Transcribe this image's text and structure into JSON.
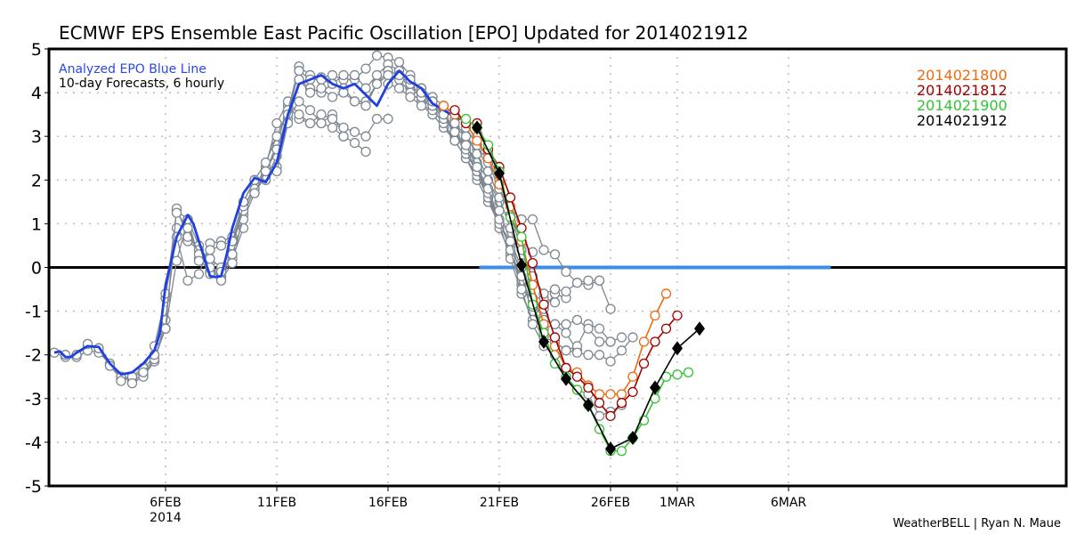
{
  "chart_data": {
    "type": "line",
    "title": "ECMWF EPS Ensemble East Pacific Oscillation [EPO] Updated for 2014021912",
    "xlabel": "",
    "ylabel": "",
    "ylim": [
      -5,
      5
    ],
    "xlim_days": [
      0,
      37.5
    ],
    "x_origin_date": "2014-02-01",
    "yticks": [
      "5",
      "4",
      "3",
      "2",
      "1",
      "0",
      "-1",
      "-2",
      "-3",
      "-4",
      "-5"
    ],
    "ytick_values": [
      5,
      4,
      3,
      2,
      1,
      0,
      -1,
      -2,
      -3,
      -4,
      -5
    ],
    "xticks": [
      {
        "day": 5,
        "label": "6FEB",
        "sublabel": "2014"
      },
      {
        "day": 10,
        "label": "11FEB",
        "sublabel": ""
      },
      {
        "day": 15,
        "label": "16FEB",
        "sublabel": ""
      },
      {
        "day": 20,
        "label": "21FEB",
        "sublabel": ""
      },
      {
        "day": 25,
        "label": "26FEB",
        "sublabel": ""
      },
      {
        "day": 28,
        "label": "1MAR",
        "sublabel": ""
      },
      {
        "day": 33,
        "label": "6MAR",
        "sublabel": ""
      }
    ],
    "grid": true,
    "annotations": {
      "analyzed_label": "Analyzed EPO Blue Line",
      "forecast_label": "10-day Forecasts, 6 hourly",
      "credit": "WeatherBELL | Ryan N. Maue"
    },
    "legend_position": "top-right",
    "analyzed": {
      "name": "Analyzed EPO",
      "color": "#2040e0",
      "x": [
        0,
        0.25,
        0.5,
        0.75,
        1,
        1.5,
        2,
        2.5,
        3,
        3.5,
        4,
        4.5,
        4.75,
        5,
        5.5,
        6,
        6.25,
        6.5,
        6.75,
        7,
        7.25,
        7.5,
        7.75,
        8,
        8.5,
        9,
        9.5,
        10,
        10.5,
        11,
        11.5,
        12,
        12.5,
        13,
        13.5,
        14,
        14.5,
        15,
        15.5,
        16,
        16.5,
        17,
        17.5,
        18,
        18.5
      ],
      "y": [
        -1.95,
        -1.92,
        -2.05,
        -2.05,
        -1.95,
        -1.8,
        -1.82,
        -2.2,
        -2.45,
        -2.4,
        -2.2,
        -1.9,
        -1.5,
        -0.4,
        0.7,
        1.2,
        1.0,
        0.6,
        0.2,
        -0.2,
        -0.22,
        -0.2,
        0.3,
        0.9,
        1.7,
        2.05,
        1.95,
        2.4,
        3.5,
        4.2,
        4.3,
        4.4,
        4.2,
        4.1,
        4.2,
        3.95,
        3.7,
        4.2,
        4.5,
        4.25,
        4.1,
        3.75,
        3.6,
        3.45,
        3.35
      ]
    },
    "ensemble_color": "#7d8791",
    "ensemble_past": [
      {
        "x": [
          0,
          0.5,
          1,
          1.5,
          2,
          2.5,
          3,
          3.5,
          4
        ],
        "y": [
          -1.95,
          -2.05,
          -2.0,
          -1.8,
          -1.85,
          -2.25,
          -2.55,
          -2.5,
          -2.3
        ]
      },
      {
        "x": [
          0.5,
          1,
          1.5,
          2,
          2.5,
          3,
          3.5,
          4,
          4.5
        ],
        "y": [
          -2.0,
          -2.05,
          -1.9,
          -1.95,
          -2.2,
          -2.5,
          -2.6,
          -2.45,
          -2.15
        ]
      },
      {
        "x": [
          1,
          1.5,
          2,
          2.5,
          3,
          3.5,
          4,
          4.5,
          5
        ],
        "y": [
          -2.0,
          -1.75,
          -1.85,
          -2.25,
          -2.5,
          -2.55,
          -2.35,
          -2.0,
          -1.4
        ]
      },
      {
        "x": [
          3,
          3.5,
          4,
          4.5,
          5,
          5.5,
          6,
          6.5,
          7,
          7.5,
          8
        ],
        "y": [
          -2.6,
          -2.5,
          -2.3,
          -1.8,
          -0.7,
          1.3,
          1.1,
          0.2,
          -0.1,
          -0.2,
          0.3
        ]
      },
      {
        "x": [
          3.5,
          4,
          4.5,
          5,
          5.5,
          6,
          6.5,
          7,
          7.5,
          8,
          8.5
        ],
        "y": [
          -2.65,
          -2.5,
          -2.15,
          -1.2,
          0.9,
          0.6,
          0.4,
          -0.15,
          -0.25,
          0.2,
          0.9
        ]
      },
      {
        "x": [
          4,
          4.5,
          5,
          5.5,
          6,
          6.5,
          7,
          7.5,
          8,
          8.5,
          9
        ],
        "y": [
          -2.4,
          -2.1,
          -1.4,
          0.15,
          1.1,
          0.5,
          0.1,
          -0.3,
          0.1,
          1.2,
          1.8
        ]
      },
      {
        "x": [
          4.5,
          5,
          5.5,
          6,
          6.5,
          7,
          7.5,
          8,
          8.5,
          9,
          9.5
        ],
        "y": [
          -2.0,
          -0.6,
          0.7,
          -0.3,
          -0.15,
          0.55,
          0.6,
          0.7,
          1.5,
          2.0,
          2.0
        ]
      },
      {
        "x": [
          5,
          5.5,
          6,
          6.5,
          7,
          7.5,
          8,
          8.5,
          9,
          9.5,
          10
        ],
        "y": [
          -1.4,
          1.35,
          0.7,
          0.4,
          0.2,
          0.0,
          0.5,
          1.3,
          1.9,
          2.0,
          2.55
        ]
      },
      {
        "x": [
          5.5,
          6,
          6.5,
          7,
          7.5,
          8,
          8.5,
          9,
          9.5,
          10,
          10.5,
          11,
          11.5,
          12,
          12.5,
          13
        ],
        "y": [
          1.25,
          0.9,
          0.3,
          0.0,
          -0.1,
          0.3,
          1.1,
          1.7,
          2.1,
          2.3,
          3.4,
          3.8,
          3.6,
          3.3,
          3.2,
          3.0
        ]
      },
      {
        "x": [
          6.5,
          7,
          7.5,
          8,
          8.5,
          9,
          9.5,
          10,
          10.5,
          11,
          11.5,
          12,
          12.5,
          13,
          13.5,
          14
        ],
        "y": [
          0.15,
          0.4,
          0.5,
          0.6,
          1.3,
          1.9,
          2.2,
          2.8,
          3.7,
          3.4,
          3.3,
          3.3,
          3.5,
          3.0,
          2.85,
          2.65
        ]
      },
      {
        "x": [
          8,
          8.5,
          9,
          9.5,
          10,
          10.5,
          11,
          11.5,
          12,
          12.5,
          13,
          13.5,
          14,
          14.5,
          15
        ],
        "y": [
          0.6,
          1.4,
          1.8,
          2.3,
          3.3,
          3.8,
          3.5,
          3.3,
          3.5,
          3.4,
          3.2,
          3.1,
          3.0,
          3.4,
          3.4
        ]
      },
      {
        "x": [
          8.5,
          9,
          9.5,
          10,
          10.5,
          11,
          11.5,
          12,
          12.5,
          13,
          13.5,
          14,
          14.5,
          15,
          15.5,
          16,
          16.5,
          17,
          17.5,
          18
        ],
        "y": [
          1.5,
          2.0,
          2.4,
          3.0,
          3.6,
          4.6,
          4.4,
          4.35,
          4.4,
          4.3,
          4.3,
          4.55,
          4.85,
          4.8,
          4.7,
          4.4,
          4.0,
          3.8,
          3.6,
          3.4
        ]
      },
      {
        "x": [
          9,
          9.5,
          10,
          10.5,
          11,
          11.5,
          12,
          12.5,
          13,
          13.5,
          14,
          14.5,
          15,
          15.5,
          16,
          16.5,
          17,
          17.5,
          18,
          18.5
        ],
        "y": [
          1.7,
          2.2,
          2.7,
          3.5,
          4.5,
          4.3,
          4.3,
          4.2,
          4.4,
          4.4,
          4.1,
          4.4,
          4.65,
          4.5,
          4.3,
          4.1,
          3.9,
          3.7,
          3.5,
          3.3
        ]
      },
      {
        "x": [
          10,
          10.5,
          11,
          11.5,
          12,
          12.5,
          13,
          13.5,
          14,
          14.5,
          15,
          15.5,
          16,
          16.5,
          17,
          17.5,
          18,
          18.5,
          19,
          19.5
        ],
        "y": [
          2.2,
          3.3,
          4.3,
          4.1,
          4.0,
          4.2,
          4.1,
          3.8,
          3.8,
          4.2,
          4.5,
          4.4,
          4.1,
          3.9,
          3.7,
          3.5,
          3.2,
          3.0,
          2.7,
          2.5
        ]
      },
      {
        "x": [
          11,
          11.5,
          12,
          12.5,
          13,
          13.5,
          14,
          14.5,
          15,
          15.5,
          16,
          16.5,
          17,
          17.5,
          18,
          18.5,
          19,
          19.5,
          20
        ],
        "y": [
          4.3,
          4.0,
          4.1,
          3.9,
          4.0,
          3.8,
          3.7,
          4.2,
          4.4,
          4.3,
          4.0,
          3.8,
          3.5,
          3.2,
          3.0,
          2.8,
          2.4,
          2.0,
          1.5
        ]
      }
    ],
    "ensemble_recent": [
      {
        "x": [
          15,
          15.5,
          16,
          16.5,
          17,
          17.5,
          18,
          18.5,
          19,
          19.5,
          20,
          20.5,
          21,
          21.5,
          22
        ],
        "y": [
          4.2,
          4.1,
          3.9,
          3.7,
          3.5,
          3.2,
          2.9,
          2.5,
          2.0,
          1.5,
          1.0,
          0.5,
          -0.4,
          -0.9,
          -1.1
        ]
      },
      {
        "x": [
          15.5,
          16,
          16.5,
          17,
          17.5,
          18,
          18.5,
          19,
          19.5,
          20,
          20.5,
          21,
          21.5,
          22,
          22.5
        ],
        "y": [
          4.4,
          4.2,
          3.9,
          3.6,
          3.3,
          2.9,
          2.5,
          2.1,
          1.6,
          1.0,
          0.6,
          0.0,
          -0.7,
          -0.7,
          -0.8
        ]
      },
      {
        "x": [
          16,
          16.5,
          17,
          17.5,
          18,
          18.5,
          19,
          19.5,
          20,
          20.5,
          21,
          21.5,
          22,
          22.5,
          23
        ],
        "y": [
          4.3,
          4.1,
          3.8,
          3.5,
          3.1,
          2.6,
          2.2,
          1.7,
          1.1,
          0.4,
          -0.4,
          -0.8,
          -0.95,
          -0.6,
          -0.7
        ]
      },
      {
        "x": [
          16.5,
          17,
          17.5,
          18,
          18.5,
          19,
          19.5,
          20,
          20.5,
          21,
          21.5,
          22,
          22.5,
          23,
          23.5
        ],
        "y": [
          4.0,
          3.7,
          3.4,
          3.1,
          2.7,
          2.2,
          1.6,
          0.9,
          0.3,
          -0.3,
          -1.0,
          -1.4,
          -1.3,
          -1.5,
          -1.9
        ]
      },
      {
        "x": [
          17,
          17.5,
          18,
          18.5,
          19,
          19.5,
          20,
          20.5,
          21,
          21.5,
          22,
          22.5,
          23,
          23.5,
          24,
          24.5,
          25
        ],
        "y": [
          3.8,
          3.5,
          3.1,
          2.8,
          2.3,
          1.7,
          1.0,
          0.2,
          -0.6,
          -1.2,
          -1.6,
          -1.7,
          -1.9,
          -1.8,
          -1.3,
          -1.4,
          -1.7
        ]
      },
      {
        "x": [
          17.5,
          18,
          18.5,
          19,
          19.5,
          20,
          20.5,
          21,
          21.5,
          22,
          22.5,
          23,
          23.5,
          24,
          24.5,
          25,
          25.5
        ],
        "y": [
          3.5,
          3.1,
          2.8,
          2.3,
          1.8,
          1.1,
          0.4,
          -0.5,
          -1.3,
          -1.8,
          -2.0,
          -2.5,
          -2.8,
          -2.9,
          -3.4,
          -3.3,
          -3.15
        ]
      },
      {
        "x": [
          18,
          18.5,
          19,
          19.5,
          20,
          20.5,
          21,
          21.5,
          22,
          22.5,
          23,
          23.5,
          24,
          24.5,
          25,
          25.5,
          26
        ],
        "y": [
          3.3,
          3.0,
          2.6,
          2.0,
          1.3,
          0.6,
          -0.2,
          -0.9,
          -1.4,
          -1.7,
          -1.9,
          -1.95,
          -2.0,
          -2.0,
          -2.15,
          -1.9,
          -1.6
        ]
      },
      {
        "x": [
          18.5,
          19,
          19.5,
          20,
          20.5,
          21,
          21.5,
          22,
          22.5,
          23,
          23.5,
          24,
          24.5,
          25,
          25.5
        ],
        "y": [
          3.2,
          2.8,
          2.2,
          1.6,
          0.9,
          0.1,
          -0.7,
          -1.2,
          -1.3,
          -1.3,
          -1.2,
          -1.4,
          -1.7,
          -1.7,
          -1.6
        ]
      },
      {
        "x": [
          19,
          19.5,
          20,
          20.5,
          21,
          21.5,
          22,
          22.5,
          23,
          23.5,
          24,
          24.5,
          25
        ],
        "y": [
          3.0,
          2.4,
          1.8,
          1.2,
          0.4,
          -0.2,
          -0.6,
          -0.5,
          -0.55,
          -0.35,
          -0.4,
          -0.3,
          -0.95
        ]
      },
      {
        "x": [
          19.5,
          20,
          20.5,
          21,
          21.5,
          22,
          22.5,
          23,
          23.5,
          24,
          24.5
        ],
        "y": [
          2.6,
          2.0,
          1.2,
          1.1,
          1.1,
          0.4,
          0.3,
          -0.1,
          -0.35,
          -0.3,
          -0.3
        ]
      },
      {
        "x": [
          20,
          20.5,
          21,
          21.5
        ],
        "y": [
          1.8,
          1.2,
          0.6,
          0.35
        ]
      }
    ],
    "series": [
      {
        "name": "2014021800",
        "color": "#ee6a10",
        "marker": "open-circle",
        "x": [
          17.5,
          18,
          18.5,
          19,
          19.5,
          20,
          20.5,
          21,
          21.5,
          22,
          22.5,
          23,
          23.5,
          24,
          24.5,
          25,
          25.5,
          26,
          26.5,
          27,
          27.5
        ],
        "y": [
          3.7,
          3.5,
          3.3,
          2.9,
          2.5,
          1.9,
          1.4,
          0.6,
          -0.4,
          -1.3,
          -1.8,
          -2.3,
          -2.4,
          -2.7,
          -2.9,
          -2.9,
          -2.9,
          -2.5,
          -1.7,
          -1.1,
          -0.6
        ]
      },
      {
        "name": "2014021812",
        "color": "#a00000",
        "marker": "open-circle",
        "x": [
          18,
          18.5,
          19,
          19.5,
          20,
          20.5,
          21,
          21.5,
          22,
          22.5,
          23,
          23.5,
          24,
          24.5,
          25,
          25.5,
          26,
          26.5,
          27,
          27.5,
          28
        ],
        "y": [
          3.6,
          3.3,
          3.3,
          2.7,
          2.3,
          1.6,
          0.9,
          0.1,
          -0.85,
          -1.6,
          -2.3,
          -2.5,
          -2.75,
          -3.1,
          -3.4,
          -3.1,
          -2.85,
          -2.2,
          -1.7,
          -1.4,
          -1.1
        ]
      },
      {
        "name": "2014021900",
        "color": "#33c233",
        "marker": "open-circle",
        "x": [
          18.5,
          19,
          19.5,
          20,
          20.5,
          21,
          21.5,
          22,
          22.5,
          23,
          23.5,
          24,
          24.5,
          25,
          25.5,
          26,
          26.5,
          27,
          27.5,
          28,
          28.5
        ],
        "y": [
          3.4,
          3.2,
          2.8,
          2.2,
          1.15,
          0.7,
          -0.85,
          -1.5,
          -2.2,
          -2.5,
          -2.8,
          -3.15,
          -3.7,
          -4.2,
          -4.2,
          -3.9,
          -3.5,
          -3.0,
          -2.5,
          -2.45,
          -2.4
        ]
      },
      {
        "name": "2014021912",
        "color": "#000000",
        "marker": "filled-diamond",
        "x": [
          19,
          20,
          21,
          22,
          23,
          24,
          25,
          26,
          27,
          28,
          29
        ],
        "y": [
          3.2,
          2.15,
          0.05,
          -1.7,
          -2.55,
          -3.15,
          -4.15,
          -3.9,
          -2.75,
          -1.85,
          -1.4
        ]
      }
    ]
  }
}
